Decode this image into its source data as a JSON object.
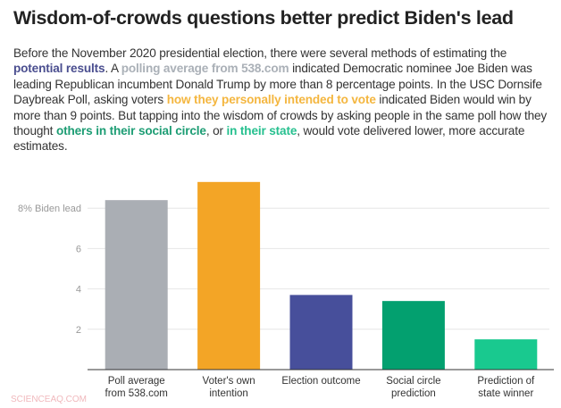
{
  "title": "Wisdom-of-crowds questions better predict Biden's lead",
  "description": [
    {
      "text": "Before the November 2020 presidential election, there were several methods of estimating the "
    },
    {
      "text": "potential results",
      "color": "#4a4e8f"
    },
    {
      "text": ". A "
    },
    {
      "text": "polling average from 538.com",
      "color": "#aab0b7"
    },
    {
      "text": " indicated Democratic nominee Joe Biden was leading Republican incumbent Donald Trump by more than 8 percentage points. In the USC Dornsife Daybreak Poll, asking voters "
    },
    {
      "text": "how they personally intended to vote",
      "color": "#f4b63f"
    },
    {
      "text": " indicated Biden would win by more than 9 points. But tapping into the wisdom of crowds by asking people in the same poll how they thought "
    },
    {
      "text": "others in their social circle",
      "color": "#1d9d74"
    },
    {
      "text": ", or "
    },
    {
      "text": "in their state",
      "color": "#26c08f"
    },
    {
      "text": ", would vote delivered lower, more accurate estimates."
    }
  ],
  "watermark": "SCIENCEAQ.COM",
  "chart_data": {
    "type": "bar",
    "categories": [
      [
        "Poll average",
        "from 538.com"
      ],
      [
        "Voter's own",
        "intention"
      ],
      [
        "Election outcome"
      ],
      [
        "Social circle",
        "prediction"
      ],
      [
        "Prediction of",
        "state winner"
      ]
    ],
    "values": [
      8.4,
      9.3,
      3.7,
      3.4,
      1.5
    ],
    "colors": [
      "#aaaeb4",
      "#f3a526",
      "#474f9b",
      "#03a06f",
      "#19c98f"
    ],
    "ylim": [
      0,
      10
    ],
    "yticks": [
      2,
      4,
      6,
      8
    ],
    "ytick_labels": [
      "2",
      "4",
      "6",
      "8% Biden lead"
    ],
    "grid": true
  }
}
